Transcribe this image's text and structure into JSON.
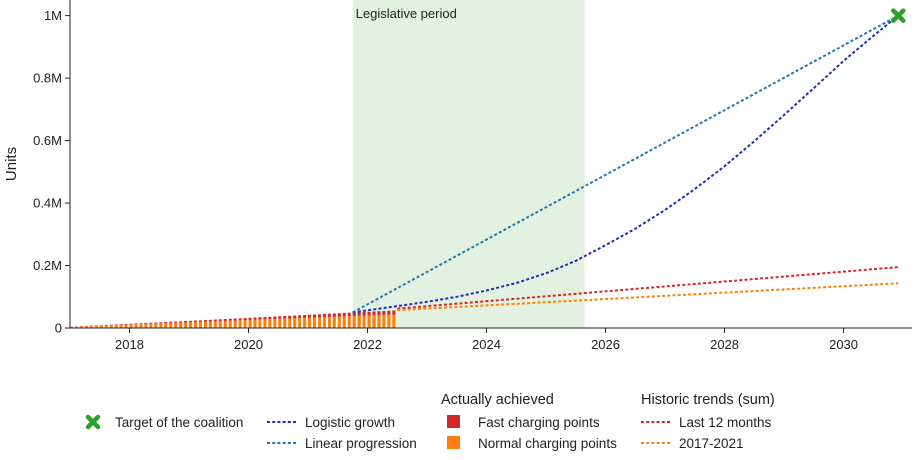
{
  "chart_data": {
    "type": "line",
    "ylabel": "Units",
    "xlim": [
      2017.0,
      2031.15
    ],
    "ylim": [
      0,
      1050000
    ],
    "x_ticks": [
      2018,
      2020,
      2022,
      2024,
      2026,
      2028,
      2030
    ],
    "x_tick_labels": [
      "2018",
      "2020",
      "2022",
      "2024",
      "2026",
      "2028",
      "2030"
    ],
    "y_ticks": [
      0,
      200000,
      400000,
      600000,
      800000,
      1000000
    ],
    "y_tick_labels": [
      "0",
      "0.2M",
      "0.4M",
      "0.6M",
      "0.8M",
      "1M"
    ],
    "grid": false,
    "legend_placement": "bottom",
    "legislative_period": {
      "label": "Legislative period",
      "start": 2021.75,
      "end": 2025.65,
      "color": "#e3f1e0"
    },
    "target": {
      "label": "Target of the coalition",
      "x": 2030.92,
      "y": 1000000,
      "color": "#2ca02c"
    },
    "series": [
      {
        "name": "Logistic growth",
        "color": "#1f2fb3",
        "x": [
          2021.75,
          2022.5,
          2023.0,
          2023.5,
          2024.0,
          2024.5,
          2025.0,
          2025.5,
          2026.0,
          2026.5,
          2027.0,
          2027.5,
          2028.0,
          2028.5,
          2029.0,
          2029.5,
          2030.0,
          2030.5,
          2030.92
        ],
        "y": [
          50000,
          70000,
          84000,
          100000,
          120000,
          144000,
          175000,
          215000,
          265000,
          318000,
          378000,
          445000,
          518000,
          598000,
          682000,
          768000,
          855000,
          935000,
          1000000
        ]
      },
      {
        "name": "Linear progression",
        "color": "#1f77b4",
        "x": [
          2021.75,
          2030.92
        ],
        "y": [
          50000,
          1000000
        ]
      },
      {
        "name": "Last 12 months",
        "color": "#d62728",
        "x": [
          2022.5,
          2030.92
        ],
        "y": [
          62000,
          195000
        ]
      },
      {
        "name": "2017-2021",
        "color": "#ff7f0e",
        "x": [
          2022.5,
          2030.92
        ],
        "y": [
          57000,
          143000
        ]
      }
    ],
    "bars": {
      "start": 2017.0,
      "end": 2022.5,
      "count": 66,
      "fast": {
        "name": "Fast charging points",
        "color": "#d62728",
        "values": [
          700,
          900,
          1000,
          1200,
          1400,
          1500,
          1700,
          1800,
          2000,
          2200,
          2300,
          2400,
          2600,
          2800,
          2900,
          3000,
          3200,
          3400,
          3500,
          3700,
          3900,
          4000,
          4200,
          4400,
          4600,
          4800,
          5000,
          5200,
          5400,
          5600,
          5800,
          6000,
          6200,
          6400,
          6600,
          6800,
          7000,
          7200,
          7400,
          7600,
          7800,
          8000,
          8200,
          8400,
          8600,
          8800,
          9000,
          9200,
          9400,
          9600,
          9800,
          10000,
          10200,
          10400,
          10600,
          10800,
          11000,
          11200,
          11400,
          11600,
          11800,
          12000,
          12200,
          12400,
          12600,
          12800
        ]
      },
      "normal": {
        "name": "Normal charging points",
        "color": "#ff7f0e",
        "values": [
          3300,
          4100,
          4800,
          5400,
          6100,
          6800,
          7300,
          8000,
          8600,
          9200,
          9900,
          10500,
          11100,
          11700,
          12300,
          13000,
          13600,
          14100,
          14800,
          15400,
          16000,
          16600,
          17200,
          17800,
          18400,
          19000,
          19600,
          20300,
          20900,
          21500,
          22100,
          22700,
          23300,
          23900,
          24500,
          25100,
          25800,
          26400,
          27000,
          27600,
          28200,
          28800,
          29400,
          30000,
          30600,
          31200,
          31800,
          32400,
          33000,
          33600,
          34200,
          34800,
          35500,
          36100,
          36700,
          37300,
          37900,
          38500,
          39100,
          39700,
          40300,
          40900,
          41500,
          42100,
          42600,
          43200
        ]
      }
    },
    "legend": {
      "group_achieved": "Actually achieved",
      "group_trends": "Historic trends (sum)"
    }
  }
}
